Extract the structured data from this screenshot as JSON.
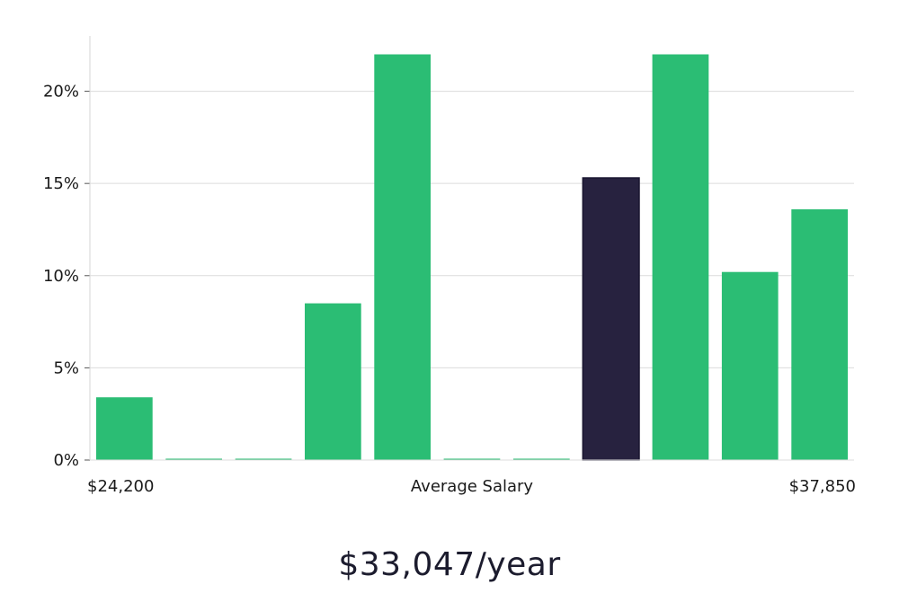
{
  "chart_data": {
    "type": "bar",
    "categories": [
      "1",
      "2",
      "3",
      "4",
      "5",
      "6",
      "7",
      "8",
      "9",
      "10",
      "11"
    ],
    "values": [
      3.4,
      0,
      0,
      8.5,
      22.0,
      0,
      0,
      15.3,
      22.0,
      10.2,
      13.6
    ],
    "highlight_index": 7,
    "ylim": [
      0,
      23
    ],
    "yticks": [
      0,
      5,
      10,
      15,
      20
    ],
    "ytick_labels": [
      "0%",
      "5%",
      "10%",
      "15%",
      "20%"
    ],
    "x_min_label": "$24,200",
    "x_max_label": "$37,850",
    "xlabel": "Average Salary",
    "grid": true,
    "colors": {
      "bar": "#2bbd74",
      "highlight": "#27223f",
      "grid": "#dcdcdc",
      "axis": "#d6d6d6"
    }
  },
  "summary": {
    "value": "$33,047/year"
  }
}
